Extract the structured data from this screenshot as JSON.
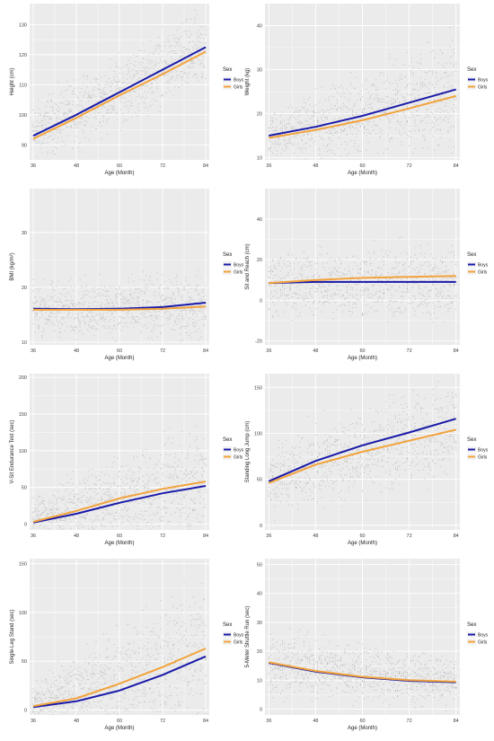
{
  "legend": {
    "title": "Sex",
    "items": [
      "Boys",
      "Girls"
    ]
  },
  "colors": {
    "boys": "#1a1aa8",
    "girls": "#f2a33c",
    "panel": "#ebebeb",
    "grid": "#ffffff",
    "points": "#9a9a9a"
  },
  "chart_data": [
    {
      "type": "scatter",
      "xlabel": "Age (Month)",
      "ylabel": "Height (cm)",
      "xlim": [
        35,
        85
      ],
      "ylim": [
        85,
        137
      ],
      "xticks": [
        36,
        48,
        60,
        72,
        84
      ],
      "yticks": [
        90,
        100,
        110,
        120,
        130
      ],
      "points": {
        "x_range": [
          36,
          84
        ],
        "center": [
          94,
          122
        ],
        "spread": [
          10,
          13
        ]
      },
      "series": [
        {
          "name": "Boys",
          "x": [
            36,
            48,
            60,
            72,
            84
          ],
          "y": [
            93,
            100,
            107.5,
            115,
            122.5
          ]
        },
        {
          "name": "Girls",
          "x": [
            36,
            48,
            60,
            72,
            84
          ],
          "y": [
            92,
            99,
            106.5,
            113.5,
            121
          ]
        }
      ]
    },
    {
      "type": "scatter",
      "xlabel": "Age (Month)",
      "ylabel": "Weight (kg)",
      "xlim": [
        35,
        85
      ],
      "ylim": [
        9.5,
        45
      ],
      "xticks": [
        36,
        48,
        60,
        72,
        84
      ],
      "yticks": [
        10,
        20,
        30,
        40
      ],
      "points": {
        "x_range": [
          36,
          84
        ],
        "center": [
          15,
          25
        ],
        "spread": [
          5,
          14
        ]
      },
      "series": [
        {
          "name": "Boys",
          "x": [
            36,
            48,
            60,
            72,
            84
          ],
          "y": [
            15,
            17,
            19.5,
            22.5,
            25.5
          ]
        },
        {
          "name": "Girls",
          "x": [
            36,
            48,
            60,
            72,
            84
          ],
          "y": [
            14.5,
            16.3,
            18.5,
            21.2,
            24
          ]
        }
      ]
    },
    {
      "type": "scatter",
      "xlabel": "Age (Month)",
      "ylabel": "BMI (kg/m²)",
      "xlim": [
        35,
        85
      ],
      "ylim": [
        9.5,
        38
      ],
      "xticks": [
        36,
        48,
        60,
        72,
        84
      ],
      "yticks": [
        10,
        20,
        30
      ],
      "points": {
        "x_range": [
          36,
          84
        ],
        "center": [
          16,
          16.5
        ],
        "spread": [
          5,
          6
        ]
      },
      "series": [
        {
          "name": "Boys",
          "x": [
            36,
            48,
            60,
            72,
            84
          ],
          "y": [
            16.1,
            16,
            16.1,
            16.4,
            17.2
          ]
        },
        {
          "name": "Girls",
          "x": [
            36,
            48,
            60,
            72,
            84
          ],
          "y": [
            15.9,
            15.9,
            15.9,
            16.1,
            16.5
          ]
        }
      ]
    },
    {
      "type": "scatter",
      "xlabel": "Age (Month)",
      "ylabel": "Sit and Reach (cm)",
      "xlim": [
        35,
        85
      ],
      "ylim": [
        -22,
        55
      ],
      "xticks": [
        36,
        48,
        60,
        72,
        84
      ],
      "yticks": [
        -20,
        0,
        20,
        40
      ],
      "points": {
        "x_range": [
          36,
          84
        ],
        "center": [
          8,
          9
        ],
        "spread": [
          16,
          20
        ]
      },
      "series": [
        {
          "name": "Boys",
          "x": [
            36,
            48,
            60,
            72,
            84
          ],
          "y": [
            8.5,
            9,
            9,
            9,
            9
          ]
        },
        {
          "name": "Girls",
          "x": [
            36,
            48,
            60,
            72,
            84
          ],
          "y": [
            8.5,
            10,
            11,
            11.5,
            12
          ]
        }
      ]
    },
    {
      "type": "scatter",
      "xlabel": "Age (Month)",
      "ylabel": "V-Sit Endurance Test (sec)",
      "xlim": [
        35,
        85
      ],
      "ylim": [
        -8,
        205
      ],
      "xticks": [
        36,
        48,
        60,
        72,
        84
      ],
      "yticks": [
        0,
        50,
        100,
        150,
        200
      ],
      "points": {
        "x_range": [
          36,
          84
        ],
        "center": [
          10,
          60
        ],
        "spread": [
          30,
          80
        ]
      },
      "series": [
        {
          "name": "Boys",
          "x": [
            36,
            48,
            60,
            72,
            84
          ],
          "y": [
            2,
            14,
            29,
            42,
            52
          ]
        },
        {
          "name": "Girls",
          "x": [
            36,
            48,
            60,
            72,
            84
          ],
          "y": [
            3,
            18,
            35,
            48,
            58
          ]
        }
      ]
    },
    {
      "type": "scatter",
      "xlabel": "Age (Month)",
      "ylabel": "Standing Long Jump (cm)",
      "xlim": [
        35,
        85
      ],
      "ylim": [
        -5,
        165
      ],
      "xticks": [
        36,
        48,
        60,
        72,
        84
      ],
      "yticks": [
        0,
        50,
        100,
        150
      ],
      "points": {
        "x_range": [
          36,
          84
        ],
        "center": [
          50,
          110
        ],
        "spread": [
          40,
          55
        ]
      },
      "series": [
        {
          "name": "Boys",
          "x": [
            36,
            48,
            60,
            72,
            84
          ],
          "y": [
            48,
            70,
            87,
            101,
            116
          ]
        },
        {
          "name": "Girls",
          "x": [
            36,
            48,
            60,
            72,
            84
          ],
          "y": [
            46,
            66,
            80,
            92,
            104
          ]
        }
      ]
    },
    {
      "type": "scatter",
      "xlabel": "Age (Month)",
      "ylabel": "Single-Leg Stand (sec)",
      "xlim": [
        35,
        85
      ],
      "ylim": [
        -5,
        155
      ],
      "xticks": [
        36,
        48,
        60,
        72,
        84
      ],
      "yticks": [
        0,
        50,
        100,
        150
      ],
      "points": {
        "x_range": [
          36,
          84
        ],
        "center": [
          8,
          60
        ],
        "spread": [
          20,
          80
        ]
      },
      "series": [
        {
          "name": "Boys",
          "x": [
            36,
            48,
            60,
            72,
            84
          ],
          "y": [
            3,
            9,
            20,
            36,
            55
          ]
        },
        {
          "name": "Girls",
          "x": [
            36,
            48,
            60,
            72,
            84
          ],
          "y": [
            4,
            12,
            27,
            44,
            63
          ]
        }
      ]
    },
    {
      "type": "scatter",
      "xlabel": "Age (Month)",
      "ylabel": "5-Meter Shuttle Run (sec)",
      "xlim": [
        35,
        85
      ],
      "ylim": [
        -2,
        52
      ],
      "xticks": [
        36,
        48,
        60,
        72,
        84
      ],
      "yticks": [
        0,
        10,
        20,
        30,
        40,
        50
      ],
      "points": {
        "x_range": [
          36,
          84
        ],
        "center": [
          16,
          9.5
        ],
        "spread": [
          12,
          8
        ]
      },
      "series": [
        {
          "name": "Boys",
          "x": [
            36,
            48,
            60,
            72,
            84
          ],
          "y": [
            16,
            13,
            11,
            9.8,
            9.3
          ]
        },
        {
          "name": "Girls",
          "x": [
            36,
            48,
            60,
            72,
            84
          ],
          "y": [
            16.2,
            13.2,
            11.2,
            10,
            9.5
          ]
        }
      ]
    }
  ]
}
